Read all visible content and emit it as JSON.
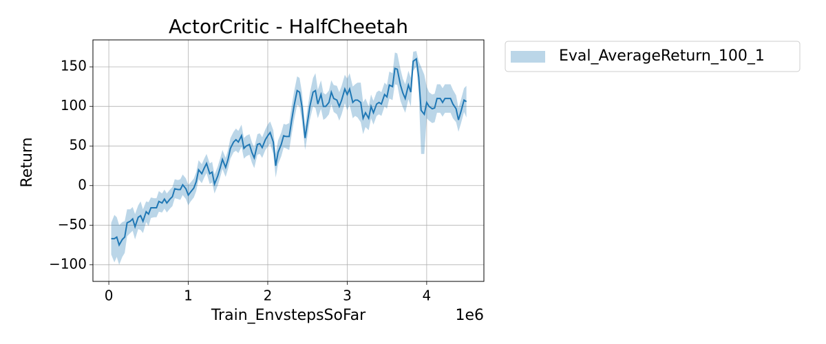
{
  "chart_data": {
    "type": "line",
    "title": "ActorCritic - HalfCheetah",
    "x_label": "Train_EnvstepsSoFar",
    "x_offset_label": "1e6",
    "y_label": "Return",
    "xlim": [
      -0.2,
      4.72
    ],
    "ylim": [
      -121,
      184
    ],
    "xticks": [
      0,
      1,
      2,
      3,
      4
    ],
    "yticks": [
      {
        "value": -100,
        "label": "−100"
      },
      {
        "value": -50,
        "label": "−50"
      },
      0,
      50,
      100,
      150
    ],
    "grid": true,
    "legend": "outside upper right",
    "x": [
      0.03,
      0.07,
      0.1,
      0.13,
      0.17,
      0.2,
      0.23,
      0.27,
      0.3,
      0.33,
      0.37,
      0.4,
      0.43,
      0.47,
      0.5,
      0.53,
      0.57,
      0.6,
      0.63,
      0.67,
      0.7,
      0.73,
      0.77,
      0.8,
      0.83,
      0.87,
      0.9,
      0.93,
      0.97,
      1.0,
      1.03,
      1.07,
      1.1,
      1.13,
      1.17,
      1.2,
      1.23,
      1.27,
      1.3,
      1.33,
      1.37,
      1.4,
      1.43,
      1.47,
      1.5,
      1.53,
      1.57,
      1.6,
      1.63,
      1.67,
      1.7,
      1.73,
      1.77,
      1.8,
      1.83,
      1.87,
      1.9,
      1.93,
      1.97,
      2.0,
      2.03,
      2.07,
      2.1,
      2.13,
      2.17,
      2.2,
      2.23,
      2.27,
      2.3,
      2.33,
      2.37,
      2.4,
      2.43,
      2.47,
      2.5,
      2.53,
      2.57,
      2.6,
      2.63,
      2.67,
      2.7,
      2.73,
      2.77,
      2.8,
      2.83,
      2.87,
      2.9,
      2.93,
      2.97,
      3.0,
      3.03,
      3.07,
      3.1,
      3.13,
      3.17,
      3.2,
      3.23,
      3.27,
      3.3,
      3.33,
      3.37,
      3.4,
      3.43,
      3.47,
      3.5,
      3.53,
      3.57,
      3.6,
      3.63,
      3.67,
      3.7,
      3.73,
      3.77,
      3.8,
      3.83,
      3.87,
      3.9,
      3.93,
      3.97,
      4.0,
      4.03,
      4.07,
      4.1,
      4.13,
      4.17,
      4.2,
      4.23,
      4.27,
      4.3,
      4.33,
      4.37,
      4.4,
      4.43,
      4.47,
      4.5
    ],
    "series": [
      {
        "name": "Eval_AverageReturn_100_1",
        "color": "#1f77b4",
        "values": [
          -67,
          -67,
          -65,
          -75,
          -68,
          -65,
          -47,
          -45,
          -42,
          -52,
          -40,
          -38,
          -45,
          -33,
          -36,
          -28,
          -28,
          -28,
          -20,
          -22,
          -17,
          -22,
          -17,
          -14,
          -4,
          -5,
          -5,
          1,
          -4,
          -12,
          -8,
          -3,
          5,
          20,
          15,
          22,
          28,
          15,
          17,
          2,
          12,
          22,
          33,
          23,
          33,
          47,
          55,
          58,
          55,
          63,
          47,
          50,
          52,
          42,
          35,
          52,
          53,
          48,
          58,
          63,
          67,
          55,
          25,
          42,
          52,
          63,
          62,
          62,
          82,
          100,
          120,
          118,
          100,
          60,
          80,
          100,
          118,
          120,
          103,
          115,
          100,
          100,
          105,
          118,
          110,
          108,
          100,
          108,
          122,
          115,
          122,
          105,
          108,
          108,
          105,
          85,
          92,
          85,
          100,
          92,
          103,
          105,
          103,
          115,
          112,
          127,
          125,
          148,
          147,
          127,
          117,
          110,
          127,
          118,
          157,
          160,
          137,
          95,
          90,
          105,
          100,
          97,
          98,
          110,
          110,
          105,
          110,
          110,
          110,
          103,
          97,
          83,
          93,
          108,
          106
        ],
        "lower": [
          -87,
          -97,
          -90,
          -100,
          -90,
          -85,
          -64,
          -60,
          -57,
          -68,
          -55,
          -56,
          -60,
          -46,
          -51,
          -41,
          -40,
          -40,
          -33,
          -34,
          -29,
          -34,
          -29,
          -26,
          -16,
          -17,
          -18,
          -12,
          -17,
          -25,
          -20,
          -15,
          -7,
          8,
          3,
          10,
          16,
          2,
          4,
          -10,
          0,
          10,
          21,
          11,
          21,
          34,
          42,
          44,
          41,
          49,
          34,
          37,
          39,
          29,
          22,
          39,
          40,
          35,
          45,
          49,
          53,
          40,
          10,
          27,
          37,
          48,
          47,
          45,
          64,
          82,
          102,
          100,
          82,
          45,
          63,
          83,
          100,
          98,
          85,
          97,
          83,
          85,
          90,
          103,
          93,
          90,
          82,
          90,
          104,
          95,
          102,
          85,
          88,
          86,
          80,
          65,
          74,
          70,
          85,
          77,
          88,
          90,
          88,
          100,
          97,
          110,
          108,
          128,
          127,
          107,
          99,
          92,
          109,
          100,
          145,
          150,
          117,
          40,
          40,
          85,
          82,
          79,
          80,
          92,
          92,
          87,
          92,
          92,
          92,
          85,
          80,
          68,
          78,
          93,
          86
        ],
        "upper": [
          -47,
          -37,
          -40,
          -50,
          -46,
          -45,
          -30,
          -30,
          -27,
          -36,
          -25,
          -20,
          -30,
          -20,
          -21,
          -15,
          -16,
          -16,
          -7,
          -10,
          -5,
          -10,
          -5,
          -2,
          8,
          7,
          8,
          14,
          9,
          1,
          4,
          9,
          17,
          32,
          27,
          34,
          40,
          28,
          30,
          14,
          24,
          34,
          45,
          35,
          45,
          60,
          68,
          72,
          69,
          77,
          60,
          63,
          65,
          55,
          48,
          65,
          66,
          61,
          71,
          77,
          81,
          70,
          40,
          57,
          67,
          78,
          77,
          79,
          100,
          118,
          138,
          136,
          118,
          75,
          97,
          117,
          136,
          142,
          121,
          133,
          117,
          115,
          120,
          133,
          127,
          126,
          118,
          126,
          140,
          135,
          142,
          125,
          128,
          130,
          130,
          105,
          110,
          100,
          115,
          107,
          118,
          120,
          118,
          130,
          127,
          144,
          142,
          168,
          167,
          147,
          135,
          128,
          145,
          136,
          169,
          170,
          157,
          150,
          140,
          125,
          118,
          115,
          116,
          128,
          128,
          123,
          128,
          128,
          128,
          121,
          114,
          98,
          108,
          123,
          126
        ]
      }
    ]
  }
}
